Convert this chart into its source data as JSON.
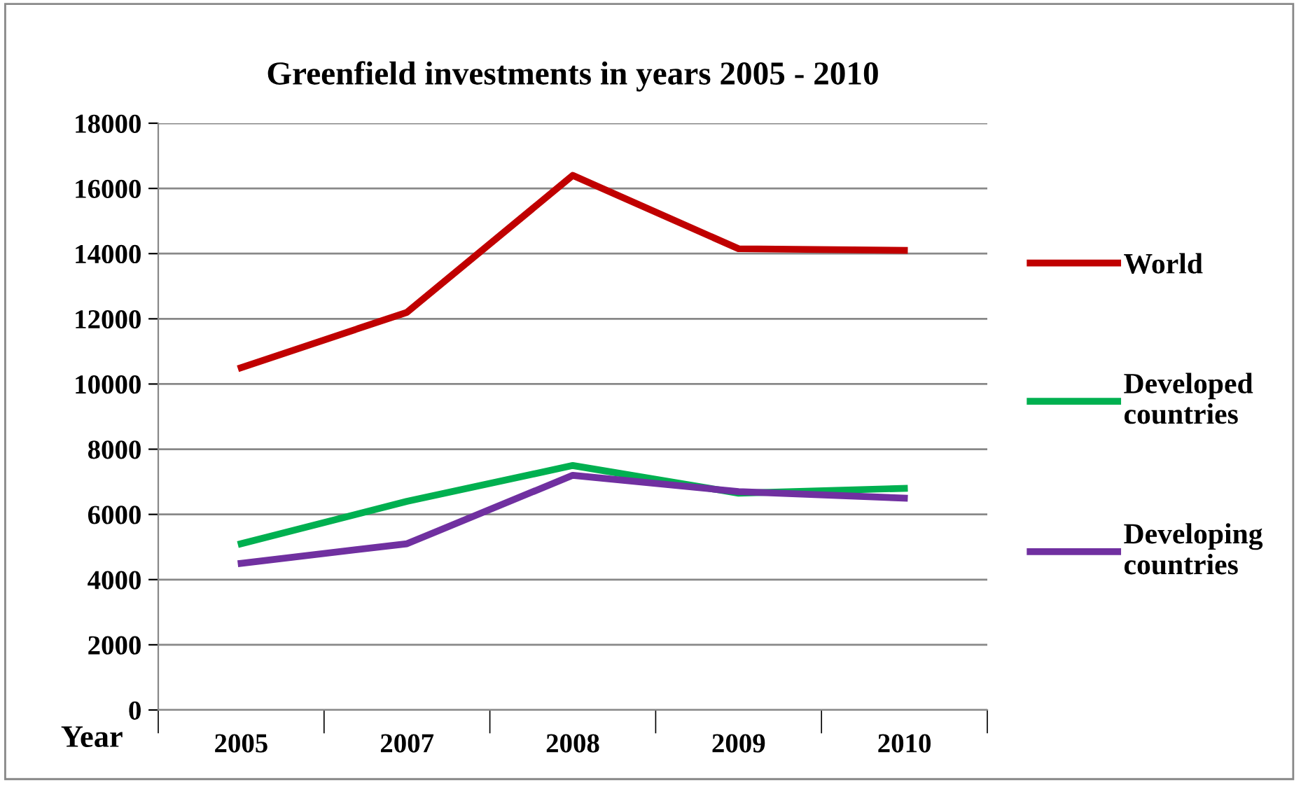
{
  "chart_data": {
    "type": "line",
    "title": "Greenfield investments in years 2005 - 2010",
    "xlabel": "Year",
    "categories": [
      "2005",
      "2007",
      "2008",
      "2009",
      "2010"
    ],
    "series": [
      {
        "name": "World",
        "color": "#c00000",
        "values": [
          10500,
          12200,
          16400,
          14150,
          14100
        ]
      },
      {
        "name": "Developed countries",
        "color": "#00b050",
        "values": [
          5100,
          6400,
          7500,
          6650,
          6800
        ]
      },
      {
        "name": "Developing countries",
        "color": "#7030a0",
        "values": [
          4500,
          5100,
          7200,
          6700,
          6500
        ]
      }
    ],
    "ylim": [
      0,
      18000
    ],
    "yticks": [
      0,
      2000,
      4000,
      6000,
      8000,
      10000,
      12000,
      14000,
      16000,
      18000
    ],
    "grid": "y",
    "legend": "right",
    "marker": "none",
    "line_style": "solid"
  }
}
